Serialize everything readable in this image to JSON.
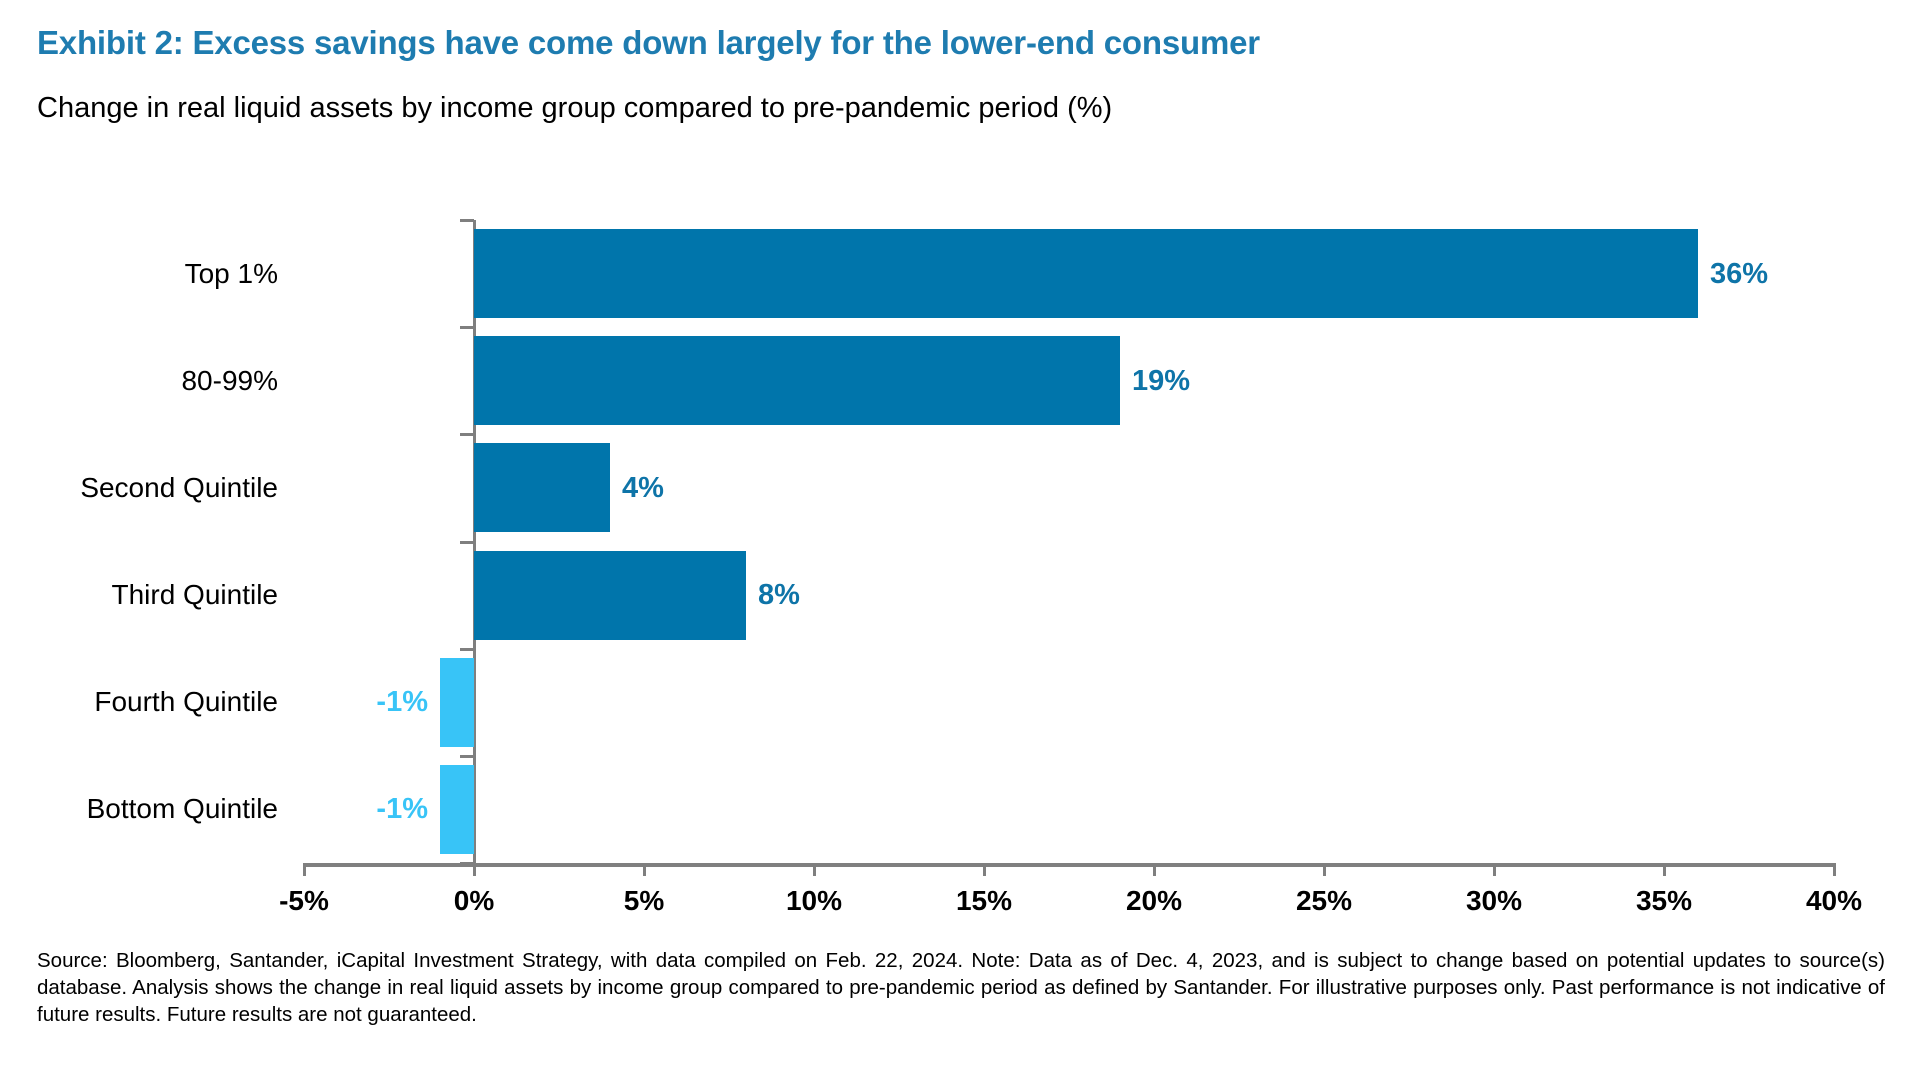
{
  "header": {
    "title": "Exhibit 2: Excess savings have come down largely for the lower-end consumer",
    "subtitle": "Change in real liquid assets by income group compared to pre-pandemic period (%)"
  },
  "chart_data": {
    "type": "bar",
    "orientation": "horizontal",
    "title": "Exhibit 2: Excess savings have come down largely for the lower-end consumer",
    "subtitle": "Change in real liquid assets by income group compared to pre-pandemic period (%)",
    "categories": [
      "Top 1%",
      "80-99%",
      "Second Quintile",
      "Third Quintile",
      "Fourth Quintile",
      "Bottom Quintile"
    ],
    "values": [
      36,
      19,
      4,
      8,
      -1,
      -1
    ],
    "value_labels": [
      "36%",
      "19%",
      "4%",
      "8%",
      "-1%",
      "-1%"
    ],
    "xlabel": "",
    "ylabel": "",
    "xlim": [
      -5,
      40
    ],
    "x_ticks": [
      -5,
      0,
      5,
      10,
      15,
      20,
      25,
      30,
      35,
      40
    ],
    "x_tick_labels": [
      "-5%",
      "0%",
      "5%",
      "10%",
      "15%",
      "20%",
      "25%",
      "30%",
      "35%",
      "40%"
    ],
    "grid": false,
    "legend": false,
    "colors": {
      "positive_bar": "#0075AB",
      "negative_bar": "#38C4F7",
      "positive_value_label": "#0E74A8",
      "negative_value_label": "#38C4F7",
      "axis": "#7F7F7F",
      "title": "#1E7CB0",
      "text": "#000000"
    }
  },
  "footer": {
    "source_text": "Source: Bloomberg, Santander, iCapital Investment Strategy, with data compiled on Feb. 22, 2024. Note: Data as of Dec. 4, 2023, and is subject to change based on potential updates to source(s) database. Analysis shows the change in real liquid assets by income group compared to pre-pandemic period as defined by Santander. For illustrative purposes only. Past performance is not indicative of future results. Future results are not guaranteed."
  }
}
